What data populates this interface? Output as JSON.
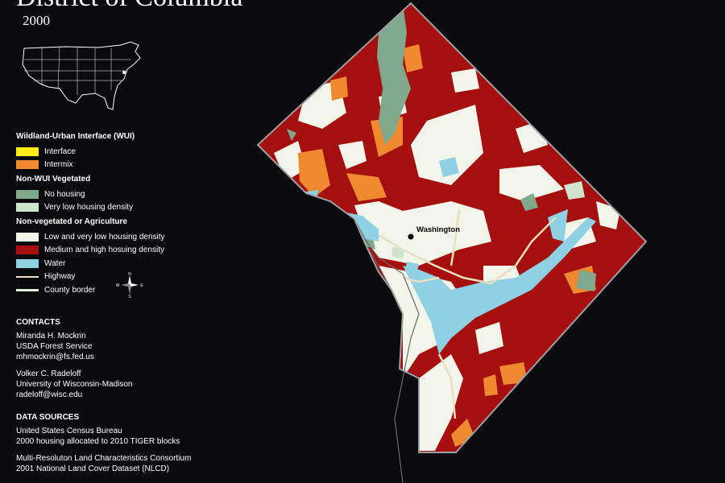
{
  "title": "District of Columbia",
  "year": "2000",
  "legend": {
    "wui": {
      "heading": "Wildland-Urban Interface (WUI)",
      "items": [
        {
          "label": "Interface",
          "color": "#ffeb1a"
        },
        {
          "label": "Intermix",
          "color": "#f08a30"
        }
      ]
    },
    "nonwui": {
      "heading": "Non-WUI Vegetated",
      "items": [
        {
          "label": "No housing",
          "color": "#7fa88c"
        },
        {
          "label": "Very low housing density",
          "color": "#cfe3cf"
        }
      ]
    },
    "nonveg": {
      "heading": "Non-vegetated or Agriculture",
      "items": [
        {
          "label": "Low and very low housing density",
          "color": "#f3f5ea"
        },
        {
          "label": "Medium and high hosuing density",
          "color": "#a50f0d"
        },
        {
          "label": "Water",
          "color": "#8fd1e4"
        }
      ]
    },
    "lines": [
      {
        "label": "Highway",
        "type": "highway"
      },
      {
        "label": "County border",
        "type": "county"
      }
    ]
  },
  "contacts": {
    "heading": "CONTACTS",
    "people": [
      {
        "name": "Miranda H. Mockrin",
        "org": "USDA Forest Service",
        "email": "mhmockrin@fs.fed.us"
      },
      {
        "name": "Volker C. Radeloff",
        "org": "University of Wisconsin-Madison",
        "email": "radeloff@wisc.edu"
      }
    ]
  },
  "sources": {
    "heading": "DATA SOURCES",
    "lines1": [
      "United States Census Bureau",
      "2000 housing allocated to 2010 TIGER blocks"
    ],
    "lines2": [
      "Multi-Resoluton Land Characteristics Consortium",
      "2001 National Land Cover Dataset (NLCD)"
    ]
  },
  "map": {
    "city_label": "Washington",
    "compass": {
      "n": "N",
      "e": "E",
      "s": "S",
      "w": "W"
    }
  }
}
